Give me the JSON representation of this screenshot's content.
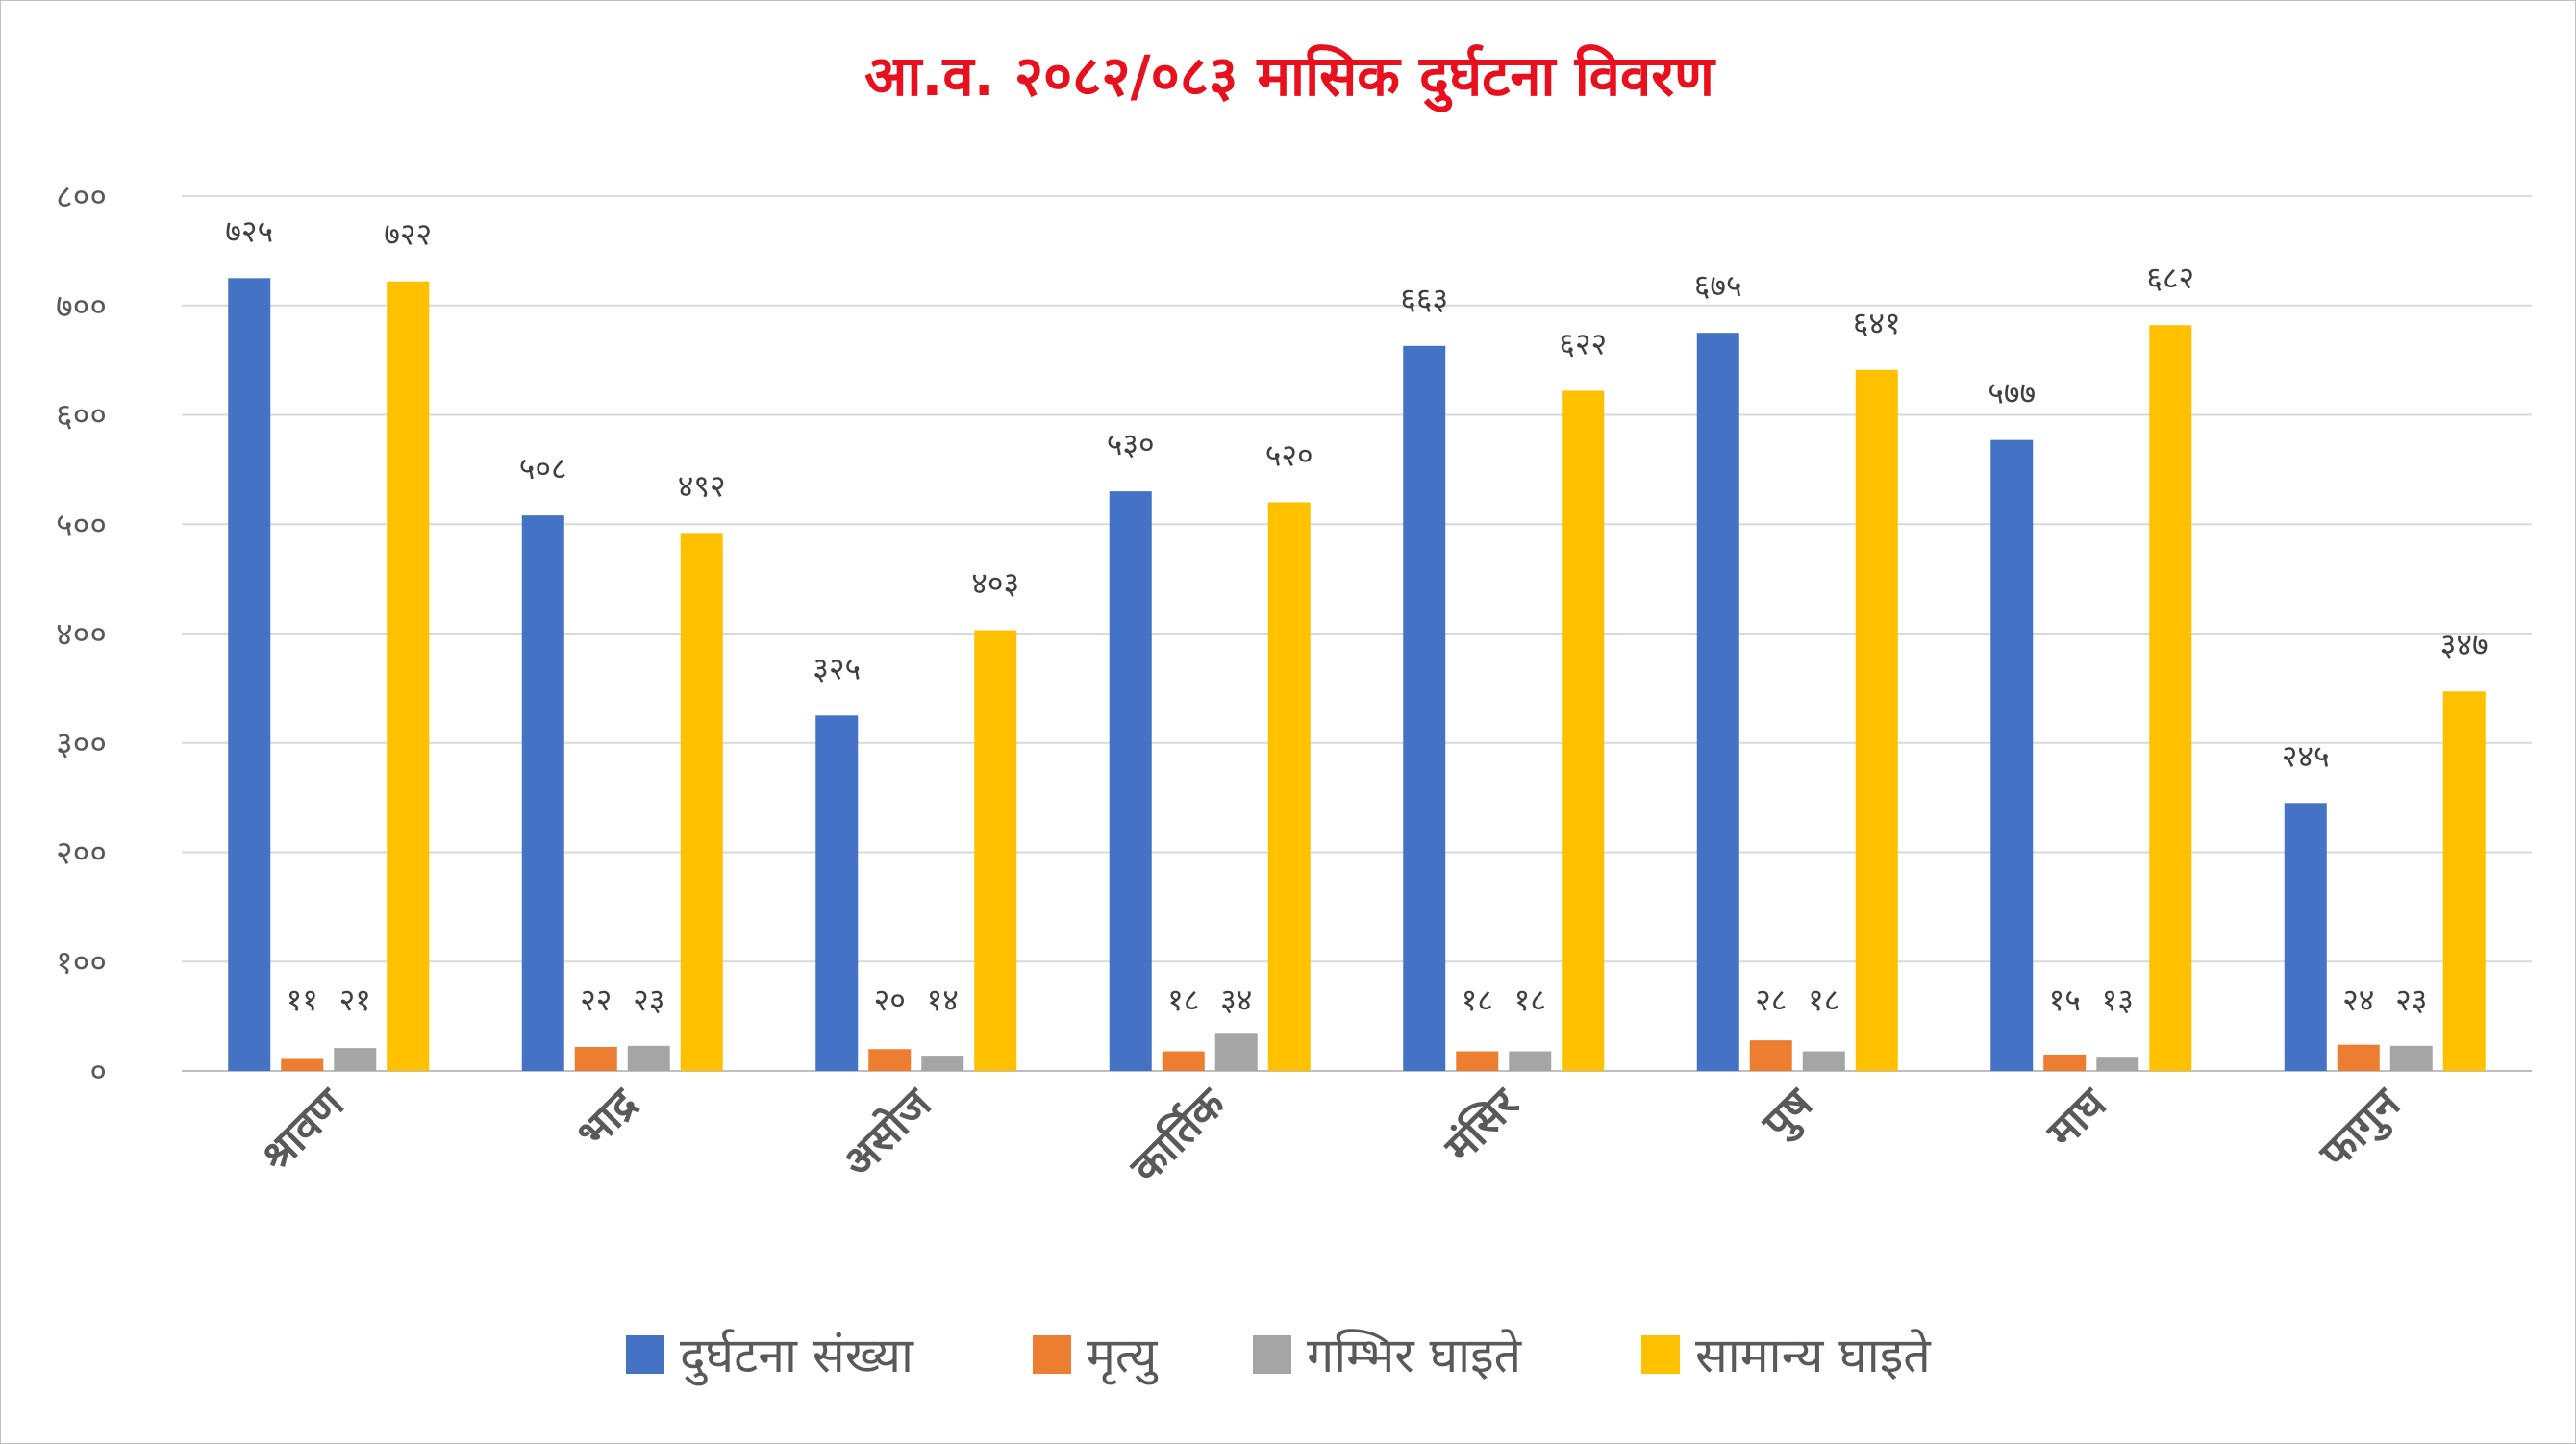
{
  "chart_data": {
    "type": "bar",
    "title": "आ.व. २०८२/०८३ मासिक दुर्घटना विवरण",
    "title_color": "#e8101c",
    "categories": [
      "श्रावण",
      "भाद्र",
      "असोज",
      "कार्तिक",
      "मंसिर",
      "पुष",
      "माघ",
      "फागुन"
    ],
    "series": [
      {
        "name": "दुर्घटना संख्या",
        "color": "#4472c4",
        "values": [
          725,
          508,
          325,
          530,
          663,
          675,
          577,
          245
        ],
        "labels": [
          "७२५",
          "५०८",
          "३२५",
          "५३०",
          "६६३",
          "६७५",
          "५७७",
          "२४५"
        ]
      },
      {
        "name": "मृत्यु",
        "color": "#ed7d31",
        "values": [
          11,
          22,
          20,
          18,
          18,
          28,
          15,
          24
        ],
        "labels": [
          "११",
          "२२",
          "२०",
          "१८",
          "१८",
          "२८",
          "१५",
          "२४"
        ]
      },
      {
        "name": "गम्भिर घाइते",
        "color": "#a5a5a5",
        "values": [
          21,
          23,
          14,
          34,
          18,
          18,
          13,
          23
        ],
        "labels": [
          "२१",
          "२३",
          "१४",
          "३४",
          "१८",
          "१८",
          "१३",
          "२३"
        ]
      },
      {
        "name": "सामान्य घाइते",
        "color": "#ffc000",
        "values": [
          722,
          492,
          403,
          520,
          622,
          641,
          682,
          347
        ],
        "labels": [
          "७२२",
          "४९२",
          "४०३",
          "५२०",
          "६२२",
          "६४१",
          "६८२",
          "३४७"
        ]
      }
    ],
    "ylim": [
      0,
      800
    ],
    "yticks": [
      0,
      100,
      200,
      300,
      400,
      500,
      600,
      700,
      800
    ],
    "ytick_labels": [
      "०",
      "१००",
      "२००",
      "३००",
      "४००",
      "५००",
      "६००",
      "७००",
      "८००"
    ],
    "grid": true,
    "legend_position": "bottom",
    "xlabel": "",
    "ylabel": ""
  }
}
